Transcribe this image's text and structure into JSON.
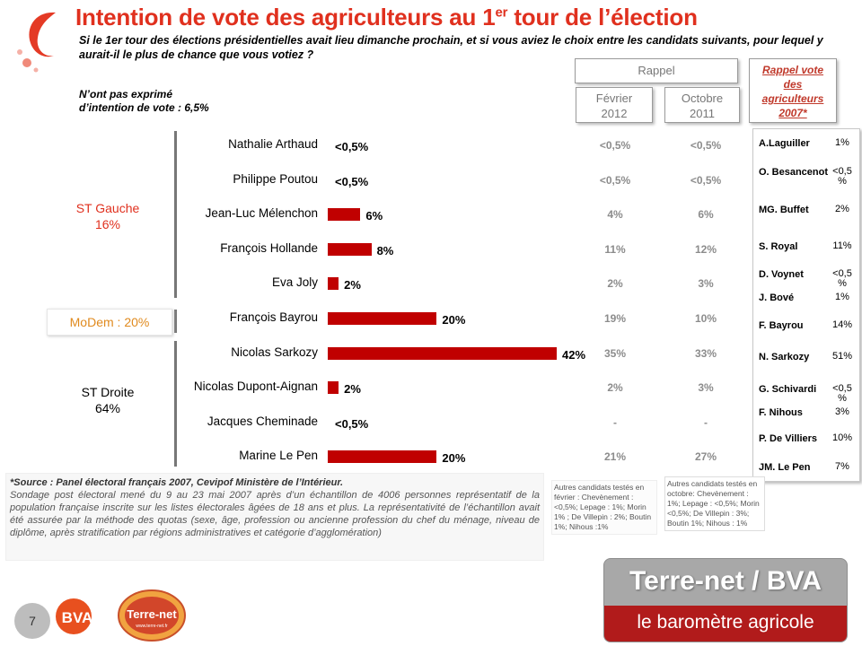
{
  "title": {
    "main": "Intention de vote des agriculteurs au 1",
    "sup": "er",
    "tail": " tour de l’élection"
  },
  "question": "Si le 1er  tour des élections présidentielles avait lieu dimanche prochain, et si vous aviez le choix entre les candidats suivants, pour lequel y aurait-il le plus de chance que vous votiez ?",
  "no_intention": {
    "line1": "N’ont pas exprimé",
    "line2": "d’intention de vote : 6,5%"
  },
  "headers": {
    "rappel": "Rappel",
    "fev_line1": "Février",
    "fev_line2": "2012",
    "oct_line1": "Octobre",
    "oct_line2": "2011",
    "r2007_line1": "Rappel vote",
    "r2007_line2": "des",
    "r2007_line3": "agriculteurs",
    "r2007_line4": "2007*"
  },
  "groups": {
    "gauche_line1": "ST Gauche",
    "gauche_line2": "16%",
    "modem": "MoDem : 20%",
    "droite_line1": "ST Droite",
    "droite_line2": "64%"
  },
  "colors": {
    "bar": "#c00000",
    "title": "#e0301e",
    "modem": "#e08a1e"
  },
  "chart_data": {
    "type": "bar",
    "orientation": "horizontal",
    "categories": [
      "Nathalie Arthaud",
      "Philippe Poutou",
      "Jean-Luc Mélenchon",
      "François Hollande",
      "Eva Joly",
      "François Bayrou",
      "Nicolas Sarkozy",
      "Nicolas Dupont-Aignan",
      "Jacques Cheminade",
      "Marine Le Pen"
    ],
    "values": [
      0,
      0,
      6,
      8,
      2,
      20,
      42,
      2,
      0,
      20
    ],
    "labels": [
      "<0,5%",
      "<0,5%",
      "6%",
      "8%",
      "2%",
      "20%",
      "42%",
      "2%",
      "<0,5%",
      "20%"
    ],
    "xlim": [
      0,
      42
    ],
    "fevrier_2012": [
      "<0,5%",
      "<0,5%",
      "4%",
      "11%",
      "2%",
      "19%",
      "35%",
      "2%",
      "-",
      "21%"
    ],
    "octobre_2011": [
      "<0,5%",
      "<0,5%",
      "6%",
      "12%",
      "3%",
      "10%",
      "33%",
      "3%",
      "-",
      "27%"
    ]
  },
  "rappel_2007": [
    {
      "name": "A.Laguiller",
      "value": "1%"
    },
    {
      "name": "O. Besancenot",
      "value": "<0,5 %"
    },
    {
      "name": "MG. Buffet",
      "value": "2%"
    },
    {
      "name": "S. Royal",
      "value": "11%"
    },
    {
      "name": "D. Voynet",
      "value": "<0,5 %"
    },
    {
      "name": "J. Bové",
      "value": "1%"
    },
    {
      "name": "F. Bayrou",
      "value": "14%"
    },
    {
      "name": "N. Sarkozy",
      "value": "51%"
    },
    {
      "name": "G. Schivardi",
      "value": "<0,5 %"
    },
    {
      "name": "F. Nihous",
      "value": "3%"
    },
    {
      "name": "P. De Villiers",
      "value": "10%"
    },
    {
      "name": "JM. Le Pen",
      "value": "7%"
    }
  ],
  "source": {
    "title": "*Source : Panel électoral français 2007, Cevipof Ministère de l’Intérieur.",
    "body": "Sondage post électoral mené du 9 au 23 mai 2007 après d’un échantillon de 4006 personnes représentatif de la population française inscrite sur les listes électorales âgées de 18 ans et plus. La représentativité de l’échantillon avait été assurée par la méthode des quotas (sexe, âge, profession ou ancienne profession du chef du ménage, niveau de diplôme, après stratification par régions administratives et catégorie d’agglomération)"
  },
  "notes": {
    "fevrier": "Autres candidats testés en février : Chevènement : <0,5%; Lepage : 1%; Morin 1% ; De Villepin : 2%; Boutin 1%; Nihous :1%",
    "octobre": "Autres candidats testés en octobre: Chevènement : 1%; Lepage : <0,5%; Morin <0,5%; De Villepin : 3%; Boutin 1%; Nihous : 1%"
  },
  "banner": {
    "top": "Terre-net / BVA",
    "bottom": "le baromètre agricole"
  },
  "footer": {
    "page_number": "7",
    "bva_logo": "BVA",
    "tnet_logo_line1": "Terre-net",
    "tnet_logo_line2": "www.terre-net.fr"
  }
}
